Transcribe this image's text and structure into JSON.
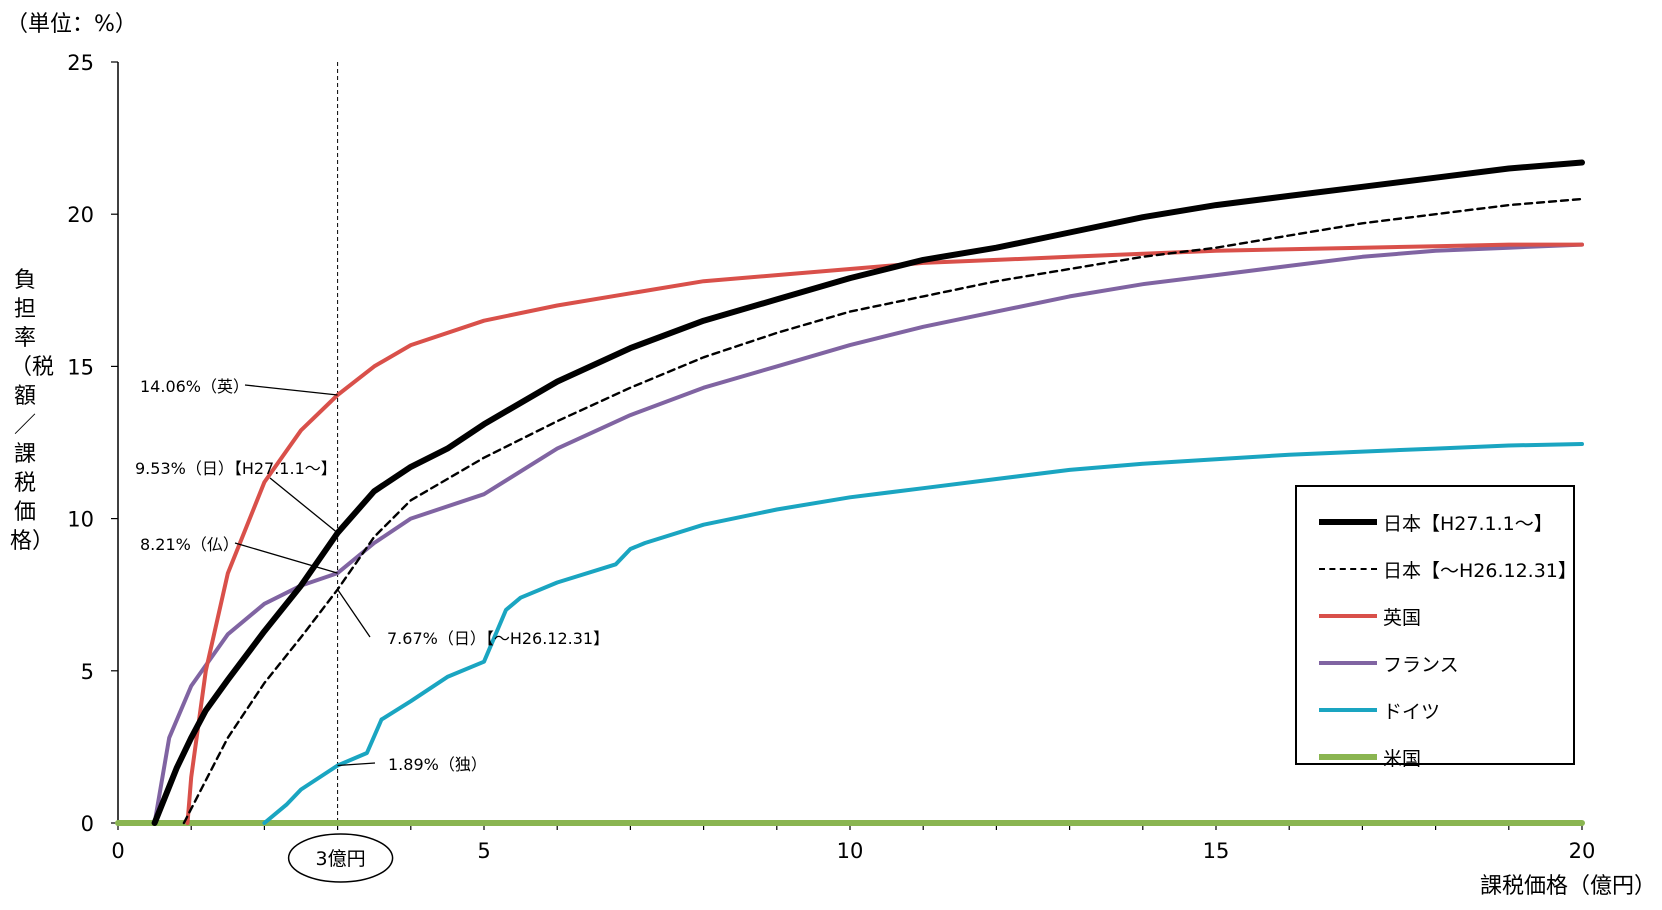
{
  "chart_data": {
    "type": "line",
    "title": "",
    "unit_label": "（単位：%）",
    "ylabel": "負担率（税額／課税価格）",
    "xlabel": "課税価格（億円）",
    "xlim": [
      0,
      20
    ],
    "ylim": [
      0,
      25
    ],
    "x_ticks": [
      "0",
      "5",
      "10",
      "15",
      "20"
    ],
    "y_ticks": [
      "0",
      "5",
      "10",
      "15",
      "20",
      "25"
    ],
    "x_tick_values": [
      0,
      5,
      10,
      15,
      20
    ],
    "y_tick_values": [
      0,
      5,
      10,
      15,
      20,
      25
    ],
    "grid": false,
    "legend_position": "bottom-right",
    "marker_line": {
      "x": 3,
      "label": "3億円"
    },
    "series": [
      {
        "name": "日本【H27.1.1～】",
        "color": "#000000",
        "dash": "solid",
        "x": [
          0.5,
          0.8,
          1.0,
          1.2,
          1.5,
          2.0,
          2.5,
          3.0,
          3.5,
          4.0,
          4.5,
          5.0,
          6.0,
          7.0,
          8.0,
          9.0,
          10.0,
          11.0,
          12.0,
          13.0,
          14.0,
          15.0,
          16.0,
          17.0,
          18.0,
          19.0,
          20.0
        ],
        "y": [
          0.0,
          1.8,
          2.8,
          3.7,
          4.7,
          6.3,
          7.8,
          9.53,
          10.9,
          11.7,
          12.3,
          13.1,
          14.5,
          15.6,
          16.5,
          17.2,
          17.9,
          18.5,
          18.9,
          19.4,
          19.9,
          20.3,
          20.6,
          20.9,
          21.2,
          21.5,
          21.7
        ]
      },
      {
        "name": "日本【～H26.12.31】",
        "color": "#000000",
        "dash": "dashed",
        "x": [
          0.9,
          1.2,
          1.5,
          2.0,
          2.5,
          3.0,
          3.5,
          4.0,
          4.5,
          5.0,
          6.0,
          7.0,
          8.0,
          9.0,
          10.0,
          11.0,
          12.0,
          13.0,
          14.0,
          15.0,
          16.0,
          17.0,
          18.0,
          19.0,
          20.0
        ],
        "y": [
          0.0,
          1.4,
          2.8,
          4.6,
          6.1,
          7.67,
          9.4,
          10.6,
          11.3,
          12.0,
          13.2,
          14.3,
          15.3,
          16.1,
          16.8,
          17.3,
          17.8,
          18.2,
          18.6,
          18.9,
          19.3,
          19.7,
          20.0,
          20.3,
          20.5
        ]
      },
      {
        "name": "英国",
        "color": "#d9504a",
        "dash": "solid",
        "x": [
          0.95,
          1.0,
          1.2,
          1.5,
          2.0,
          2.5,
          3.0,
          3.5,
          4.0,
          5.0,
          6.0,
          7.0,
          8.0,
          9.0,
          10.0,
          11.0,
          12.0,
          13.0,
          14.0,
          15.0,
          16.0,
          17.0,
          18.0,
          19.0,
          20.0
        ],
        "y": [
          0.0,
          1.5,
          5.0,
          8.2,
          11.2,
          12.9,
          14.06,
          15.0,
          15.7,
          16.5,
          17.0,
          17.4,
          17.8,
          18.0,
          18.2,
          18.4,
          18.5,
          18.6,
          18.7,
          18.8,
          18.85,
          18.9,
          18.95,
          19.0,
          19.0
        ]
      },
      {
        "name": "フランス",
        "color": "#8064a2",
        "dash": "solid",
        "x": [
          0.5,
          0.7,
          1.0,
          1.5,
          2.0,
          2.5,
          3.0,
          3.5,
          4.0,
          5.0,
          6.0,
          7.0,
          8.0,
          9.0,
          10.0,
          11.0,
          12.0,
          13.0,
          14.0,
          15.0,
          16.0,
          17.0,
          18.0,
          19.0,
          20.0
        ],
        "y": [
          0.0,
          2.8,
          4.5,
          6.2,
          7.2,
          7.8,
          8.21,
          9.2,
          10.0,
          10.8,
          12.3,
          13.4,
          14.3,
          15.0,
          15.7,
          16.3,
          16.8,
          17.3,
          17.7,
          18.0,
          18.3,
          18.6,
          18.8,
          18.9,
          19.0
        ]
      },
      {
        "name": "ドイツ",
        "color": "#1aa5c1",
        "dash": "solid",
        "x": [
          2.0,
          2.3,
          2.5,
          3.0,
          3.4,
          3.6,
          4.0,
          4.5,
          5.0,
          5.3,
          5.5,
          6.0,
          6.8,
          7.0,
          7.2,
          8.0,
          9.0,
          10.0,
          11.0,
          12.0,
          13.0,
          14.0,
          15.0,
          16.0,
          17.0,
          18.0,
          19.0,
          20.0
        ],
        "y": [
          0.0,
          0.6,
          1.1,
          1.89,
          2.3,
          3.4,
          4.0,
          4.8,
          5.3,
          7.0,
          7.4,
          7.9,
          8.5,
          9.0,
          9.2,
          9.8,
          10.3,
          10.7,
          11.0,
          11.3,
          11.6,
          11.8,
          11.95,
          12.1,
          12.2,
          12.3,
          12.4,
          12.45
        ]
      },
      {
        "name": "米国",
        "color": "#8ab551",
        "dash": "solid",
        "x": [
          0,
          20
        ],
        "y": [
          0.0,
          0.0
        ]
      }
    ],
    "annotations": [
      {
        "text": "14.06%（英）",
        "x": 3,
        "y": 14.06
      },
      {
        "text": "9.53%（日）【H27.1.1～】",
        "x": 3,
        "y": 9.53
      },
      {
        "text": "8.21%（仏）",
        "x": 3,
        "y": 8.21
      },
      {
        "text": "7.67%（日）【～H26.12.31】",
        "x": 3,
        "y": 7.67
      },
      {
        "text": "1.89%（独）",
        "x": 3,
        "y": 1.89
      }
    ]
  }
}
